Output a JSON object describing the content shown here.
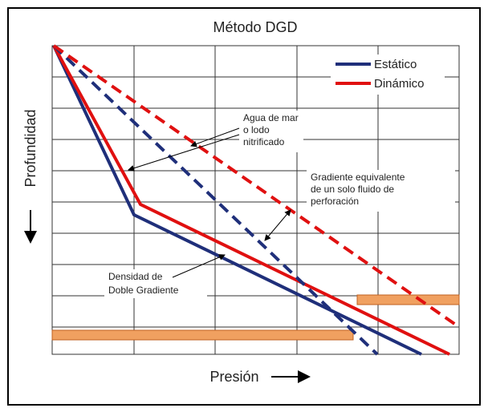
{
  "title": "Método DGD",
  "y_label": "Profundidad",
  "x_label": "Presión",
  "legend": [
    "Estático",
    "Dinámico"
  ],
  "annotations": {
    "seawater": [
      "Agua de mar",
      "o lodo",
      "nitrificado"
    ],
    "equivalent": [
      "Gradiente equivalente",
      "de un solo fluido de",
      "perforación"
    ],
    "dual": [
      "Densidad de",
      "Doble Gradiente"
    ]
  }
}
